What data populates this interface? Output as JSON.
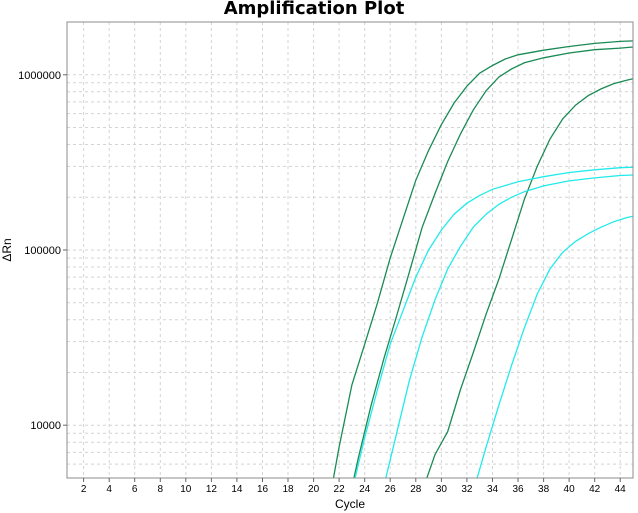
{
  "chart_data": {
    "type": "line",
    "title": "Amplification Plot",
    "xlabel": "Cycle",
    "ylabel": "ΔRn",
    "xlim": [
      0.7,
      45
    ],
    "ylim": [
      5000,
      2000000
    ],
    "yscale": "log",
    "grid": true,
    "legend": "none",
    "x_ticks": [
      2,
      4,
      6,
      8,
      10,
      12,
      14,
      16,
      18,
      20,
      22,
      24,
      26,
      28,
      30,
      32,
      34,
      36,
      38,
      40,
      42,
      44
    ],
    "y_ticks": [
      10000,
      100000,
      1000000
    ],
    "y_tick_labels": [
      "10000",
      "100000",
      "1000000"
    ],
    "series": [
      {
        "color": "#1a8a55",
        "points": [
          [
            21.0,
            3000
          ],
          [
            22.0,
            7500
          ],
          [
            23.0,
            17000
          ],
          [
            24.0,
            29000
          ],
          [
            25.0,
            50000
          ],
          [
            26.0,
            90000
          ],
          [
            27.0,
            150000
          ],
          [
            28.0,
            250000
          ],
          [
            29.0,
            370000
          ],
          [
            30.0,
            520000
          ],
          [
            31.0,
            690000
          ],
          [
            32.0,
            860000
          ],
          [
            33.0,
            1020000
          ],
          [
            34.0,
            1130000
          ],
          [
            35.0,
            1230000
          ],
          [
            36.0,
            1300000
          ],
          [
            38.0,
            1380000
          ],
          [
            40.0,
            1450000
          ],
          [
            42.0,
            1510000
          ],
          [
            44.0,
            1550000
          ],
          [
            45.0,
            1560000
          ]
        ]
      },
      {
        "color": "#1a8a55",
        "points": [
          [
            22.5,
            3000
          ],
          [
            23.5,
            6500
          ],
          [
            24.5,
            13000
          ],
          [
            25.5,
            24000
          ],
          [
            26.5,
            42000
          ],
          [
            27.5,
            75000
          ],
          [
            28.5,
            135000
          ],
          [
            29.5,
            210000
          ],
          [
            30.5,
            320000
          ],
          [
            31.5,
            460000
          ],
          [
            32.5,
            630000
          ],
          [
            33.5,
            810000
          ],
          [
            34.5,
            970000
          ],
          [
            35.5,
            1080000
          ],
          [
            36.5,
            1170000
          ],
          [
            38.0,
            1250000
          ],
          [
            40.0,
            1330000
          ],
          [
            42.0,
            1390000
          ],
          [
            44.0,
            1420000
          ],
          [
            45.0,
            1440000
          ]
        ]
      },
      {
        "color": "#1a8a55",
        "points": [
          [
            28.5,
            4200
          ],
          [
            29.5,
            6800
          ],
          [
            30.5,
            9200
          ],
          [
            31.5,
            16000
          ],
          [
            32.5,
            26000
          ],
          [
            33.5,
            43000
          ],
          [
            34.5,
            68000
          ],
          [
            35.5,
            115000
          ],
          [
            36.5,
            195000
          ],
          [
            37.5,
            300000
          ],
          [
            38.5,
            430000
          ],
          [
            39.5,
            560000
          ],
          [
            40.5,
            670000
          ],
          [
            41.5,
            760000
          ],
          [
            42.5,
            830000
          ],
          [
            43.5,
            890000
          ],
          [
            44.5,
            930000
          ],
          [
            45.0,
            950000
          ]
        ]
      },
      {
        "color": "#22eaea",
        "points": [
          [
            23.0,
            4200
          ],
          [
            24.0,
            8500
          ],
          [
            25.0,
            16000
          ],
          [
            26.0,
            29000
          ],
          [
            27.0,
            45000
          ],
          [
            28.0,
            70000
          ],
          [
            29.0,
            100000
          ],
          [
            30.0,
            130000
          ],
          [
            31.0,
            160000
          ],
          [
            32.0,
            185000
          ],
          [
            33.0,
            205000
          ],
          [
            34.0,
            222000
          ],
          [
            36.0,
            245000
          ],
          [
            38.0,
            262000
          ],
          [
            40.0,
            277000
          ],
          [
            42.0,
            287000
          ],
          [
            44.0,
            295000
          ],
          [
            45.0,
            297000
          ]
        ]
      },
      {
        "color": "#22eaea",
        "points": [
          [
            25.5,
            4500
          ],
          [
            26.5,
            9000
          ],
          [
            27.5,
            18000
          ],
          [
            28.5,
            32000
          ],
          [
            29.5,
            52000
          ],
          [
            30.5,
            78000
          ],
          [
            31.5,
            105000
          ],
          [
            32.5,
            135000
          ],
          [
            33.5,
            160000
          ],
          [
            34.5,
            182000
          ],
          [
            35.5,
            200000
          ],
          [
            36.5,
            215000
          ],
          [
            38.0,
            232000
          ],
          [
            40.0,
            248000
          ],
          [
            42.0,
            258000
          ],
          [
            44.0,
            266000
          ],
          [
            45.0,
            268000
          ]
        ]
      },
      {
        "color": "#22eaea",
        "points": [
          [
            32.5,
            4200
          ],
          [
            33.5,
            7500
          ],
          [
            34.5,
            13000
          ],
          [
            35.5,
            22000
          ],
          [
            36.5,
            36000
          ],
          [
            37.5,
            56000
          ],
          [
            38.5,
            78000
          ],
          [
            39.5,
            97000
          ],
          [
            40.5,
            112000
          ],
          [
            41.5,
            124000
          ],
          [
            42.5,
            135000
          ],
          [
            43.5,
            145000
          ],
          [
            44.5,
            153000
          ],
          [
            45.0,
            156000
          ]
        ]
      }
    ]
  }
}
